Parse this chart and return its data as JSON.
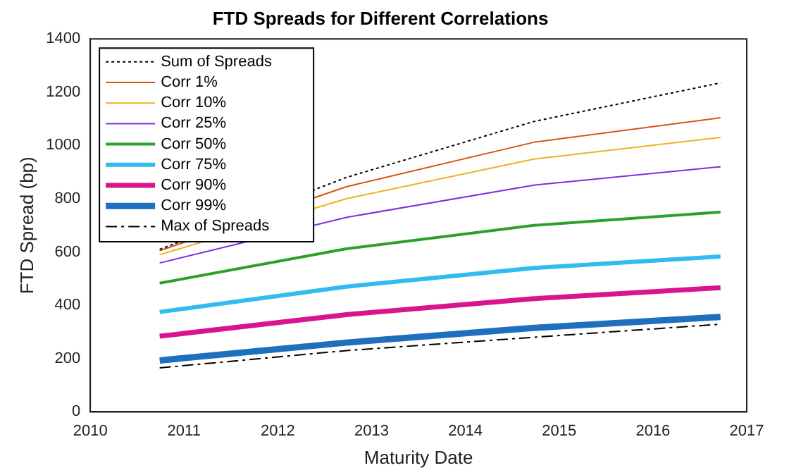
{
  "chart_data": {
    "type": "line",
    "title": "FTD Spreads for Different Correlations",
    "xlabel": "Maturity Date",
    "ylabel": "FTD Spread (bp)",
    "x": [
      2010.74,
      2012.73,
      2014.73,
      2016.72
    ],
    "xlim": [
      2010,
      2017
    ],
    "xticks": [
      2010,
      2011,
      2012,
      2013,
      2014,
      2015,
      2016,
      2017
    ],
    "ylim": [
      0,
      1400
    ],
    "yticks": [
      0,
      200,
      400,
      600,
      800,
      1000,
      1200,
      1400
    ],
    "grid": false,
    "legend": "top left",
    "marker": "none",
    "series": [
      {
        "name": "Sum of Spreads",
        "color": "#000000",
        "line_style": "dotted",
        "values": [
          610,
          880,
          1090,
          1235
        ]
      },
      {
        "name": "Corr 1%",
        "color": "#d95319",
        "values": [
          605,
          845,
          1012,
          1104
        ]
      },
      {
        "name": "Corr 10%",
        "color": "#edb120",
        "values": [
          590,
          800,
          949,
          1030
        ]
      },
      {
        "name": "Corr 25%",
        "color": "#7e2fde",
        "values": [
          559,
          730,
          851,
          920
        ]
      },
      {
        "name": "Corr 50%",
        "color": "#2ca02c",
        "values": [
          483,
          612,
          700,
          750
        ]
      },
      {
        "name": "Corr 75%",
        "color": "#33bbee",
        "values": [
          375,
          470,
          540,
          583
        ]
      },
      {
        "name": "Corr 90%",
        "color": "#d9148f",
        "values": [
          284,
          365,
          425,
          466
        ]
      },
      {
        "name": "Corr 99%",
        "color": "#1f6fbf",
        "values": [
          193,
          260,
          315,
          356
        ]
      },
      {
        "name": "Max of Spreads",
        "color": "#000000",
        "line_style": "dashdot",
        "values": [
          165,
          230,
          280,
          329
        ]
      }
    ]
  }
}
